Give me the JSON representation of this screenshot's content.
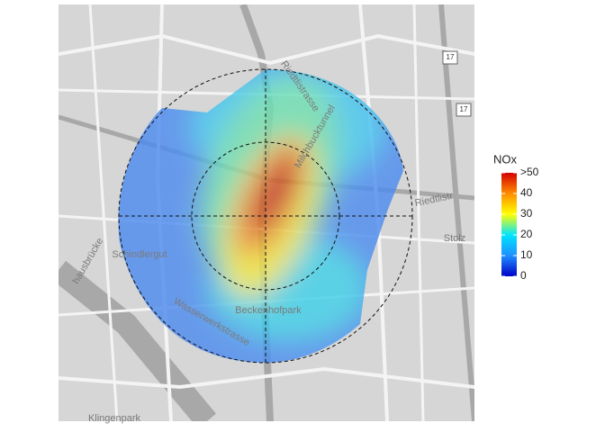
{
  "map_labels": [
    "Schindlergut",
    "Beckenhofpark",
    "Klingenpark",
    "Stolz",
    "Milchbucktunnel",
    "Wasserwerkstrasse",
    "Riedtlistr",
    "Riedtlistrasse",
    "hausbrücke",
    "17",
    "17"
  ],
  "legend": {
    "title": "NOx",
    "range": [
      0,
      50
    ],
    "ticks": [
      0,
      10,
      20,
      30,
      40,
      {
        "value": 50,
        "label": ">50"
      }
    ],
    "colors": [
      "#0000c8",
      "#1e90ff",
      "#00e5ff",
      "#ffff00",
      "#ff8c00",
      "#d40000"
    ]
  }
}
